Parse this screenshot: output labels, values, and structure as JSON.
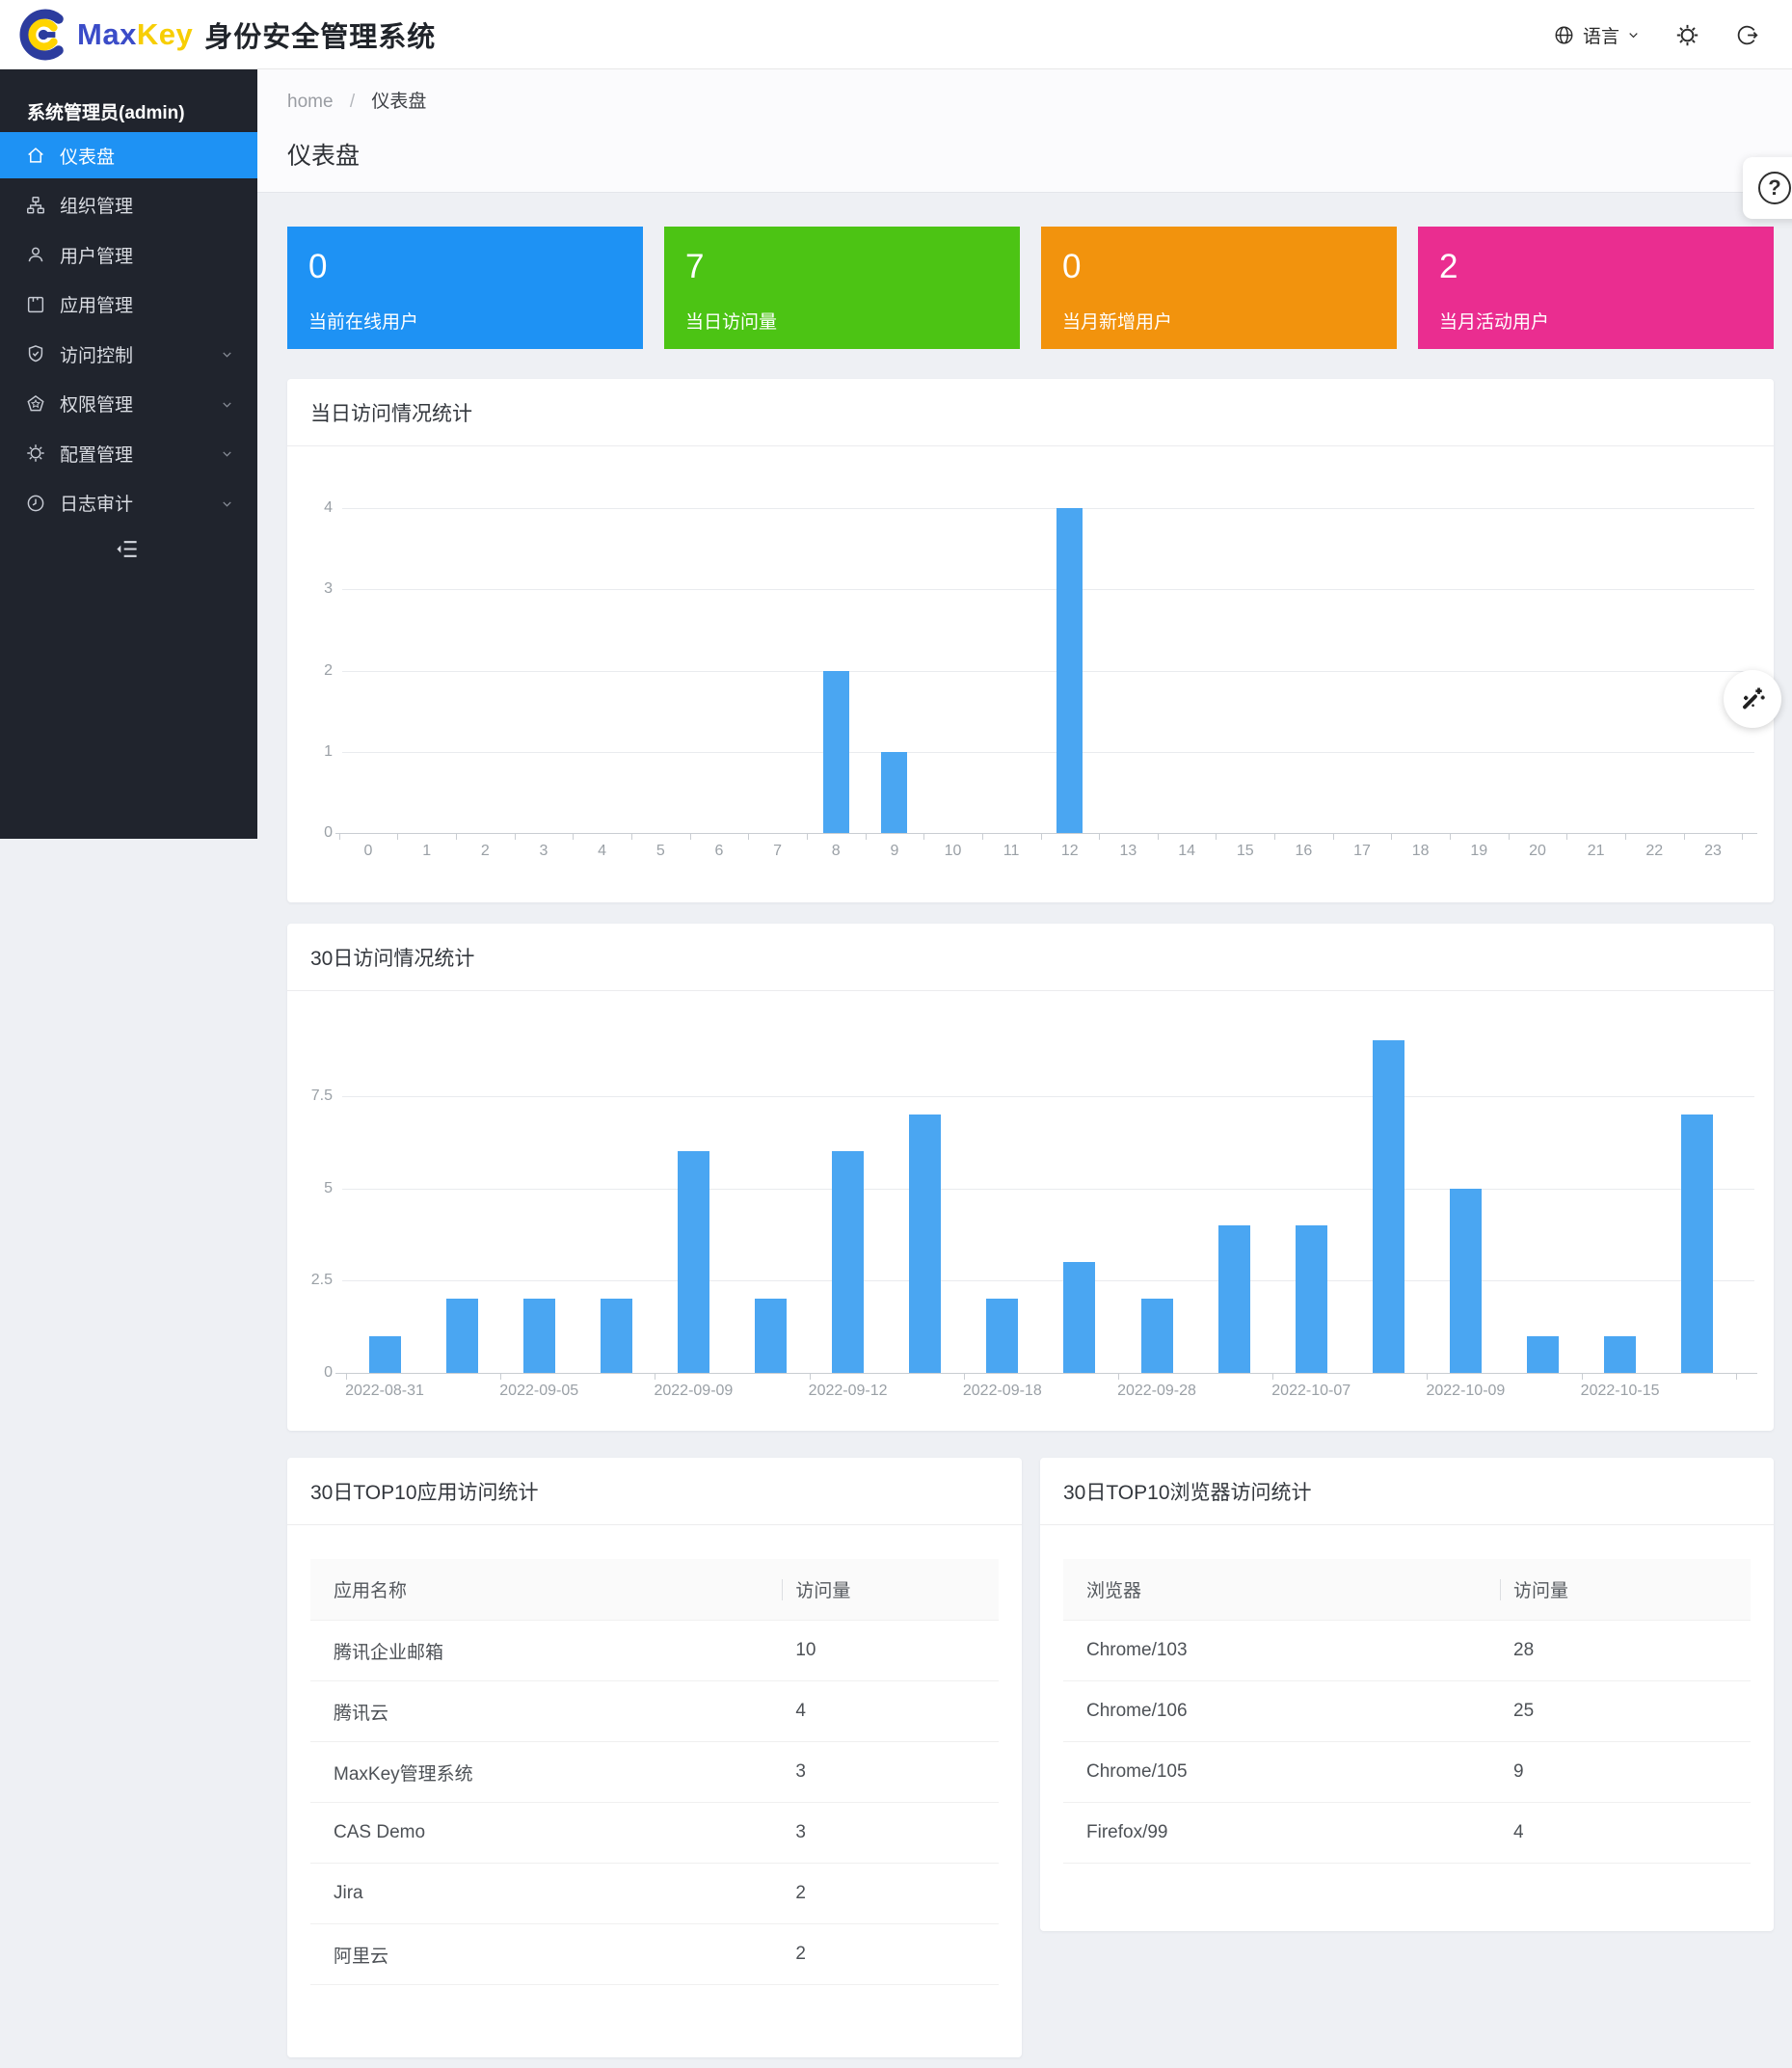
{
  "brand": {
    "max": "Max",
    "key": "Key",
    "system_title": "身份安全管理系统"
  },
  "header": {
    "language_label": "语言"
  },
  "sidebar": {
    "admin_label": "系统管理员(admin)",
    "items": [
      {
        "label": "仪表盘",
        "icon": "home",
        "active": true,
        "expandable": false
      },
      {
        "label": "组织管理",
        "icon": "org",
        "active": false,
        "expandable": false
      },
      {
        "label": "用户管理",
        "icon": "user",
        "active": false,
        "expandable": false
      },
      {
        "label": "应用管理",
        "icon": "app",
        "active": false,
        "expandable": false
      },
      {
        "label": "访问控制",
        "icon": "shield",
        "active": false,
        "expandable": true
      },
      {
        "label": "权限管理",
        "icon": "permission",
        "active": false,
        "expandable": true
      },
      {
        "label": "配置管理",
        "icon": "gear",
        "active": false,
        "expandable": true
      },
      {
        "label": "日志审计",
        "icon": "clock",
        "active": false,
        "expandable": true
      }
    ]
  },
  "breadcrumb": {
    "items": [
      "home",
      "仪表盘"
    ]
  },
  "page_title": "仪表盘",
  "stat_cards": [
    {
      "value": "0",
      "label": "当前在线用户",
      "color": "#1e92f4"
    },
    {
      "value": "7",
      "label": "当日访问量",
      "color": "#4cc414"
    },
    {
      "value": "0",
      "label": "当月新增用户",
      "color": "#f2930d"
    },
    {
      "value": "2",
      "label": "当月活动用户",
      "color": "#ea2d90"
    }
  ],
  "chart_data": [
    {
      "type": "bar",
      "title": "当日访问情况统计",
      "categories": [
        "0",
        "1",
        "2",
        "3",
        "4",
        "5",
        "6",
        "7",
        "8",
        "9",
        "10",
        "11",
        "12",
        "13",
        "14",
        "15",
        "16",
        "17",
        "18",
        "19",
        "20",
        "21",
        "22",
        "23"
      ],
      "values": [
        0,
        0,
        0,
        0,
        0,
        0,
        0,
        0,
        2,
        1,
        0,
        0,
        4,
        0,
        0,
        0,
        0,
        0,
        0,
        0,
        0,
        0,
        0,
        0
      ],
      "xlabel": "",
      "ylabel": "",
      "ylim": [
        0,
        4
      ],
      "yticks": [
        0,
        1,
        2,
        3,
        4
      ],
      "grid": true,
      "legend": false,
      "bar_color": "#4aa6f2"
    },
    {
      "type": "bar",
      "title": "30日访问情况统计",
      "categories": [
        "2022-08-31",
        "",
        "2022-09-05",
        "",
        "2022-09-09",
        "",
        "2022-09-12",
        "",
        "2022-09-18",
        "",
        "2022-09-28",
        "",
        "2022-10-07",
        "",
        "2022-10-09",
        "",
        "2022-10-15",
        ""
      ],
      "values": [
        1,
        2,
        2,
        2,
        6,
        2,
        6,
        7,
        2,
        3,
        2,
        4,
        4,
        9,
        5,
        1,
        1,
        7
      ],
      "xlabel": "",
      "ylabel": "",
      "ylim": [
        0,
        10
      ],
      "yticks": [
        0,
        2.5,
        5,
        7.5
      ],
      "grid": true,
      "legend": false,
      "bar_color": "#4aa6f2"
    }
  ],
  "tables": [
    {
      "title": "30日TOP10应用访问统计",
      "columns": [
        "应用名称",
        "访问量"
      ],
      "rows": [
        [
          "腾讯企业邮箱",
          "10"
        ],
        [
          "腾讯云",
          "4"
        ],
        [
          "MaxKey管理系统",
          "3"
        ],
        [
          "CAS Demo",
          "3"
        ],
        [
          "Jira",
          "2"
        ],
        [
          "阿里云",
          "2"
        ]
      ]
    },
    {
      "title": "30日TOP10浏览器访问统计",
      "columns": [
        "浏览器",
        "访问量"
      ],
      "rows": [
        [
          "Chrome/103",
          "28"
        ],
        [
          "Chrome/106",
          "25"
        ],
        [
          "Chrome/105",
          "9"
        ],
        [
          "Firefox/99",
          "4"
        ]
      ]
    }
  ],
  "floating": {
    "help_glyph": "?",
    "help_icon": "question-circle",
    "theme_icon": "magic-wand"
  }
}
